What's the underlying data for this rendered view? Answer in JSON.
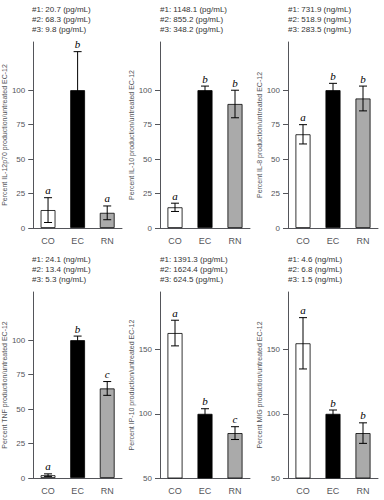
{
  "chart_data": [
    {
      "type": "bar",
      "ylabel": "Percent IL-12p70 production/untreated EC-12",
      "annotation": "#1: 20.7 (pg/mL)\n#2: 68.3 (pg/mL)\n#3: 9.8 (pg/mL)",
      "categories": [
        "CO",
        "EC",
        "RN"
      ],
      "values": [
        13,
        100,
        11
      ],
      "errors": [
        9,
        28,
        5
      ],
      "letters": [
        "a",
        "b",
        "a"
      ],
      "colors": [
        "white",
        "black",
        "#aaaaaa"
      ],
      "edgecolor": "black",
      "ylim": [
        0,
        135
      ],
      "yticks": [
        0,
        25,
        50,
        75,
        100
      ],
      "grid": false
    },
    {
      "type": "bar",
      "ylabel": "Percent IL-10 production/untreated EC-12",
      "annotation": "#1: 1148.1 (pg/mL)\n#2: 855.2 (pg/mL)\n#3: 348.2 (pg/mL)",
      "categories": [
        "CO",
        "EC",
        "RN"
      ],
      "values": [
        15,
        100,
        90
      ],
      "errors": [
        3,
        3,
        10
      ],
      "letters": [
        "a",
        "b",
        "b"
      ],
      "colors": [
        "white",
        "black",
        "#aaaaaa"
      ],
      "edgecolor": "black",
      "ylim": [
        0,
        135
      ],
      "yticks": [
        0,
        25,
        50,
        75,
        100
      ],
      "grid": false
    },
    {
      "type": "bar",
      "ylabel": "Percent IL-8 production/untreated EC-12",
      "annotation": "#1: 731.9 (ng/mL)\n#2: 518.9 (ng/mL)\n#3: 283.5 (ng/mL)",
      "categories": [
        "CO",
        "EC",
        "RN"
      ],
      "values": [
        68,
        100,
        94
      ],
      "errors": [
        7,
        5,
        9
      ],
      "letters": [
        "a",
        "b",
        "b"
      ],
      "colors": [
        "white",
        "black",
        "#aaaaaa"
      ],
      "edgecolor": "black",
      "ylim": [
        0,
        135
      ],
      "yticks": [
        0,
        25,
        50,
        75,
        100
      ],
      "grid": false
    },
    {
      "type": "bar",
      "ylabel": "Percent TNF production/untreated EC-12",
      "annotation": "#1: 24.1 (ng/mL)\n#2: 13.4 (ng/mL)\n#3: 5.3 (ng/mL)",
      "categories": [
        "CO",
        "EC",
        "RN"
      ],
      "values": [
        2,
        100,
        65
      ],
      "errors": [
        1,
        3,
        5
      ],
      "letters": [
        "a",
        "b",
        "c"
      ],
      "colors": [
        "white",
        "black",
        "#aaaaaa"
      ],
      "edgecolor": "black",
      "ylim": [
        0,
        135
      ],
      "yticks": [
        0,
        25,
        50,
        75,
        100
      ],
      "grid": false
    },
    {
      "type": "bar",
      "ylabel": "Percent IP-10 production/untreated EC-12",
      "annotation": "#1: 1391.3 (pg/mL)\n#2: 1624.4 (pg/mL)\n#3: 624.5 (pg/mL)",
      "categories": [
        "CO",
        "EC",
        "RN"
      ],
      "values": [
        163,
        100,
        85
      ],
      "errors": [
        10,
        4,
        5
      ],
      "letters": [
        "a",
        "b",
        "c"
      ],
      "colors": [
        "white",
        "black",
        "#aaaaaa"
      ],
      "edgecolor": "black",
      "ylim": [
        50,
        195
      ],
      "yticks": [
        50,
        100,
        150
      ],
      "grid": false
    },
    {
      "type": "bar",
      "ylabel": "Percent MIG production/untreated EC-12",
      "annotation": "#1: 4.6 (ng/mL)\n#2: 6.8 (ng/mL)\n#3: 1.5 (ng/mL)",
      "categories": [
        "CO",
        "EC",
        "RN"
      ],
      "values": [
        155,
        100,
        85
      ],
      "errors": [
        20,
        3,
        8
      ],
      "letters": [
        "a",
        "b",
        "b"
      ],
      "colors": [
        "white",
        "black",
        "#aaaaaa"
      ],
      "edgecolor": "black",
      "ylim": [
        50,
        195
      ],
      "yticks": [
        50,
        100,
        150
      ],
      "grid": false
    }
  ]
}
